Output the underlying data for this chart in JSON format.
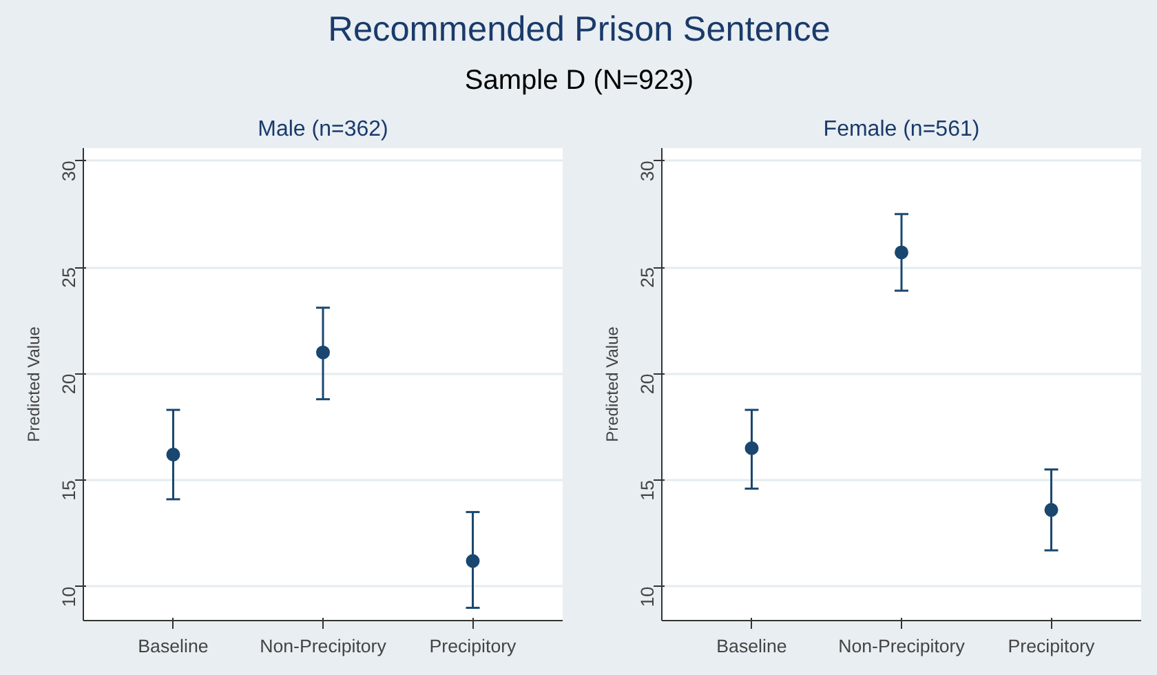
{
  "chart_data": [
    {
      "type": "other",
      "title": "Recommended Prison Sentence",
      "subtitle": "Sample D (N=923)"
    },
    {
      "type": "scatter",
      "title": "Male (n=362)",
      "ylabel": "Predicted Value",
      "categories": [
        "Baseline",
        "Non-Precipitory",
        "Precipitory"
      ],
      "series": [
        {
          "color": "#1a476f",
          "values": [
            16.2,
            21.0,
            11.2
          ],
          "errors": [
            [
              14.1,
              18.3
            ],
            [
              18.8,
              23.1
            ],
            [
              9.0,
              13.5
            ]
          ]
        }
      ],
      "ylim": [
        8.4,
        30.6
      ],
      "yticks": [
        10,
        15,
        20,
        25,
        30
      ],
      "grid": "y",
      "marker": "circle"
    },
    {
      "type": "scatter",
      "title": "Female (n=561)",
      "ylabel": "Predicted Value",
      "categories": [
        "Baseline",
        "Non-Precipitory",
        "Precipitory"
      ],
      "series": [
        {
          "color": "#1a476f",
          "values": [
            16.5,
            25.7,
            13.6
          ],
          "errors": [
            [
              14.6,
              18.3
            ],
            [
              23.9,
              27.5
            ],
            [
              11.7,
              15.5
            ]
          ]
        }
      ],
      "ylim": [
        8.4,
        30.6
      ],
      "yticks": [
        10,
        15,
        20,
        25,
        30
      ],
      "grid": "y",
      "marker": "circle"
    }
  ]
}
